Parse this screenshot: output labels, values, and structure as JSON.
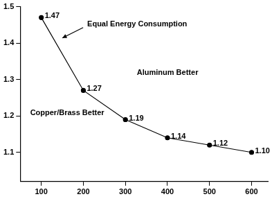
{
  "chart_data": {
    "type": "line",
    "x": [
      100,
      200,
      300,
      400,
      500,
      600
    ],
    "values": [
      1.47,
      1.27,
      1.19,
      1.14,
      1.12,
      1.1
    ],
    "value_labels": [
      "1.47",
      "1.27",
      "1.19",
      "1.14",
      "1.12",
      "1.10"
    ],
    "data_labels": true,
    "color": "#000000",
    "marker": "circle",
    "xlim": [
      50,
      640
    ],
    "xticks": [
      100,
      200,
      300,
      400,
      500,
      600
    ],
    "ylim": [
      1.02,
      1.5
    ],
    "yticks": [
      1.1,
      1.2,
      1.3,
      1.4,
      1.5
    ],
    "grid": false,
    "annotations": [
      "Equal Energy Consumption",
      "Aluminum Better",
      "Copper/Brass Better"
    ]
  }
}
